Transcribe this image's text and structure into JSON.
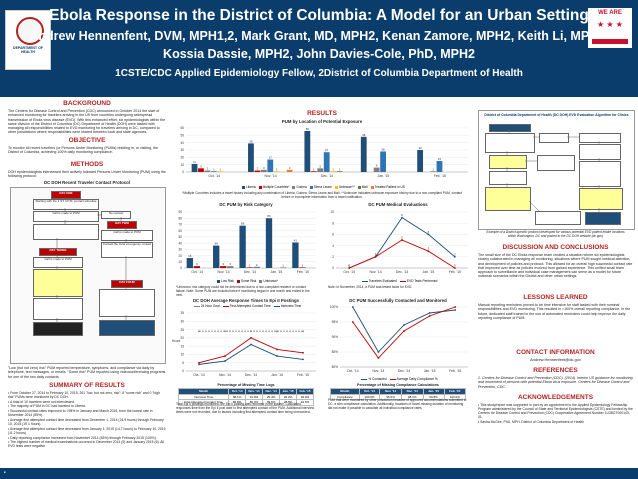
{
  "header": {
    "title": "Ebola Response in the District of Columbia: A Model for an Urban Setting",
    "authors_line1": "Andrew Hennenfent, DVM, MPH1,2, Mark Grant, MD, MPH2, Kenan Zamore, MPH2, Keith Li, MPH2,",
    "authors_line2": "Kossia Dassie, MPH2, John Davies-Cole, PhD, MPH2",
    "affiliations": "1CSTE/CDC Applied Epidemiology Fellow, 2District of Columbia Department of Health",
    "logo_left_text": "DEPARTMENT OF HEALTH",
    "logo_right_text": "WE ARE"
  },
  "left": {
    "background_heading": "BACKGROUND",
    "background_text": "The Centers for Disease Control and Prevention (CDC) announced in October 2014 the start of enhanced monitoring for travelers arriving in the US from countries undergoing widespread transmission of Ebola virus disease (EVD). With this enhanced effort, six epidemiologists within the same division of the District of Columbia (DC) Department of Health (DOH) were tasked with managing all responsibilities related to EVD monitoring for travelers arriving in DC, compared to other jurisdictions where responsibilities were shared between local and state agencies.",
    "objective_heading": "OBJECTIVE",
    "objective_text": "To monitor all recent travelers (or Persons Under Monitoring (PUMs) residing in, or visiting, the District of Columbia, achieving 100% daily monitoring compliance.",
    "methods_heading": "METHODS",
    "methods_text": "DOH epidemiologists interviewed their actively followed Persons Under Monitoring (PUM) using the following protocol:",
    "flow_title": "DC DOH Recent Traveler Contact Protocol",
    "flow": {
      "day_one": "DAY ONE",
      "day_one_text": "Starting with the 1 ST 4 P.M. contact schedule",
      "day_two": "DAY TWO",
      "day_three": "DAY THREE",
      "day_four": "DAY FOUR",
      "call_made": "Call is made to PUM",
      "no_contact": "No contact",
      "escalate": "Contact the local emergency contact"
    },
    "methods_note": "\"Low (but not zero) risk\" PUM reported temperature, symptoms, and compliance via daily by telephone, text messages, or emails. \"Some risk\" PUM reported using videoconferencing programs for one of the two daily contacts.",
    "summary_heading": "SUMMARY OF RESULTS",
    "summary_items": [
      "From October 27, 2014 to February 10, 2015, 261 \"low, but not zero, risk\"; 8 \"some risk\" and 0 \"high risk\" PUMs were monitored by DC DOH.",
      "A total of 10 travelers were not interviewed.",
      "The majority of PUM in DC had traveled to Liberia.",
      "Successful contact rates improved to >98% in January and March 2015, from the lowest rate in November 2014 (85%).",
      "Average first attempted contact time decreased from December 1, 2014 (24.9 hours) through February 10, 2015 (19.1 hours).",
      "Average first attempted contact time decreased from January 1, 2015 (14.7 hours) to February 10, 2015 (11.2 hours).",
      "Daily reporting compliance increased from November 2014 (83%) through February 2015 (100%).",
      "The highest number of medical examinations occurred in December 2014 (9) and January 2015 (6). All EVD tests were negative"
    ]
  },
  "middle": {
    "results_heading": "RESULTS",
    "chart1_title": "PUM by Location of Potential Exposure",
    "chart1_note": "*Multiple Countries includes a travel history including any combination of Liberia, Guinea, Sierra Leone and Mali. **Unknown indicates unknown exposure history due to a non-compliant PUM, contact before or incomplete information from a travel notification.",
    "chart2_title": "DC PUM by Risk Category",
    "chart2_note": "*Unknown: risk category could not be determined due to a non-compliant resident or contact failure. Note: Some PUM are included twice if monitoring began in one month and ended in the next.",
    "chart3_title": "DC PUM Medical Evaluations",
    "chart3_note": "Note: In November, 2014, a PUM was tested twice for EVD.",
    "chart4_title": "DC DOH Average Response Times to Epi II Postings",
    "chart4_table_title": "Percentage of Missing Time Logs",
    "chart4_table": {
      "headers": [
        "Month",
        "Oct. '14",
        "Nov. '14",
        "Dec. '14",
        "Jan. '15",
        "Feb. '15"
      ],
      "rows": [
        [
          "Interview Time",
          "68.1%",
          "31.9%",
          "25.4%",
          "26.2%",
          "39.0%"
        ],
        [
          "First Attempted Contact Time",
          "86.8%",
          "80.4%",
          "39.6%",
          "28.5%",
          "19.5%"
        ]
      ]
    },
    "chart4_note": "Total Epi II postings monitored: the Epi II posting was recorded in the system. Calculated responses time from the Epi II post date to first attempted contact of the PUM. Additional interview times were not recorded, due to factors including first attempted contact time being unrecorded.",
    "chart5_title": "DC PUM Successfully Contacted and Monitored",
    "chart5_table_title": "Percentage of Missing Compliance Calculations",
    "chart5_table": {
      "headers": [
        "Month",
        "Oct. '14",
        "Nov. '14",
        "Dec. '14",
        "Jan. '15",
        "Feb. '15"
      ],
      "rows": [
        [
          "Compliance",
          "100.0%",
          "95.0%",
          "98.1%",
          "99.8%",
          "100.0%"
        ]
      ]
    },
    "chart5_note": "PUM that were monitored by other jurisdiction because of approved accommodations submitted to DC, a slim compliance calculation. Additionally, locations of travel missing duration of monitoring did not make it possible to calculate all individual compliance rates."
  },
  "right": {
    "flow_title": "District of Columbia Department of Health (DC DOH) EVD Evaluation Algorithm for Clinics",
    "flow_note": "Example of a District-specific protocol developed for various potential EVD patient intake locations within Washington, DC and posted to the DC DOH website (dc.gov)",
    "discussion_heading": "DISCUSSION AND CONCLUSIONS",
    "discussion_text": "The small size of the DC Ebola response team created a situation where six epidemiologists closely collaborated in managing all monitoring, situations where PUM sought medical attention, and development of policies and protocol. This allowed for an overall high successful contact rate that improved over time as policies evolved from gained experience. This unified small team approach to surveillance and individual case management can serve as a model for future outbreak scenarios within the District and other urban settings.",
    "lessons_heading": "LESSONS LEARNED",
    "lessons_text": "Manual reporting reminders proved to be time intensive for staff tasked with their nominal responsibilities and EVD monitoring. This resulted in <100% overall reporting compliance. In the future, dedicated staff trained in the use of automated reminders could help improve the daily reporting compliance of PUM.",
    "contact_heading": "CONTACT INFORMATION",
    "contact_email": "Andrew.Hennenfent@dc.gov",
    "references_heading": "REFERENCES",
    "references_text": "1. Centers for Disease Control and Prevention (CDC). (2014). Interim US guidance for monitoring and movement of persons with potential Ebola virus exposure. Centers for Disease Control and Prevention, CDC.",
    "ack_heading": "ACKNOWLEDGEMENTS",
    "ack_items": [
      "This study/report was supported in part by an appointment to the Applied Epidemiology Fellowship Program administered by the Council of State and Territorial Epidemiologists (CSTE) and funded by the Centers for Disease Control and Prevention (CDC) Cooperative Agreement Number 1U38OT000143-01.",
      "Sasha McGee, PhD, MPH. District of Columbia Department of Health"
    ]
  },
  "colors": {
    "header_bg": "#0a3d6b",
    "heading_red": "#b22222"
  },
  "chart_data": [
    {
      "type": "bar",
      "title": "PUM by Location of Potential Exposure",
      "categories": [
        "Oct. '14",
        "Nov. '14",
        "Dec. '14",
        "Jan. '15",
        "Feb. '15"
      ],
      "series": [
        {
          "name": "Liberia",
          "values": [
            11,
            39,
            56,
            48,
            30
          ]
        },
        {
          "name": "Multiple Countries*",
          "values": [
            5,
            2,
            1,
            0,
            0
          ]
        },
        {
          "name": "Guinea",
          "values": [
            2,
            3,
            5,
            6,
            1
          ]
        },
        {
          "name": "Sierra Leone",
          "values": [
            1,
            17,
            27,
            28,
            15
          ]
        },
        {
          "name": "Unknown**",
          "values": [
            1,
            1,
            1,
            0,
            0
          ]
        },
        {
          "name": "Mali",
          "values": [
            0,
            0,
            1,
            0,
            0
          ]
        },
        {
          "name": "Treated Patient in US",
          "values": [
            0,
            3,
            0,
            0,
            0
          ]
        }
      ],
      "ylim": [
        0,
        60
      ],
      "legend": "bottom"
    },
    {
      "type": "bar",
      "title": "DC PUM by Risk Category",
      "categories": [
        "Oct. '14",
        "Nov. '14",
        "Dec. '14",
        "Jan. '15",
        "Feb. '15"
      ],
      "series": [
        {
          "name": "Low Risk",
          "values": [
            16,
            36,
            68,
            80,
            41
          ]
        },
        {
          "name": "Some Risk",
          "values": [
            3,
            3,
            1,
            0,
            1
          ]
        },
        {
          "name": "Unknown*",
          "values": [
            0,
            3,
            2,
            1,
            0
          ]
        }
      ],
      "ylim": [
        0,
        90
      ],
      "legend": "bottom"
    },
    {
      "type": "line",
      "title": "DC PUM Medical Evaluations",
      "categories": [
        "Oct. '14",
        "Nov. '14",
        "Dec. '14",
        "Jan. '15",
        "Feb. '15"
      ],
      "series": [
        {
          "name": "Travelers Evaluated",
          "values": [
            0,
            2,
            9,
            6,
            2
          ]
        },
        {
          "name": "EVD Tests Performed",
          "values": [
            0,
            2,
            5,
            3,
            0
          ]
        }
      ],
      "ylim": [
        0,
        10
      ],
      "legend": "bottom"
    },
    {
      "type": "line",
      "title": "DC DOH Average Response Times to Epi II Postings",
      "categories": [
        "Oct. '14",
        "Nov. '14",
        "Dec. '14",
        "Jan. '15",
        "Feb. '15"
      ],
      "series": [
        {
          "name": "24 Hour Goal",
          "values": [
            24,
            24,
            24,
            24,
            24
          ]
        },
        {
          "name": "First Attempted Contact Time",
          "values": [
            5,
            9,
            20,
            13,
            11
          ]
        },
        {
          "name": "Interview Time",
          "values": [
            4,
            6,
            16,
            9,
            7
          ]
        }
      ],
      "ylabel": "Hours",
      "ylim": [
        0,
        35
      ],
      "legend": "top"
    },
    {
      "type": "line",
      "title": "DC PUM Successfully Contacted and Monitored",
      "categories": [
        "Oct. '14",
        "Nov. '14",
        "Dec. '14",
        "Jan. '15",
        "Feb. '15"
      ],
      "series": [
        {
          "name": "% Contacted",
          "values": [
            100,
            85,
            94,
            98,
            99
          ]
        },
        {
          "name": "Average Daily Compliance %",
          "values": [
            95,
            83,
            92,
            97,
            100
          ]
        }
      ],
      "ylim": [
        80,
        100
      ],
      "legend": "bottom"
    }
  ]
}
